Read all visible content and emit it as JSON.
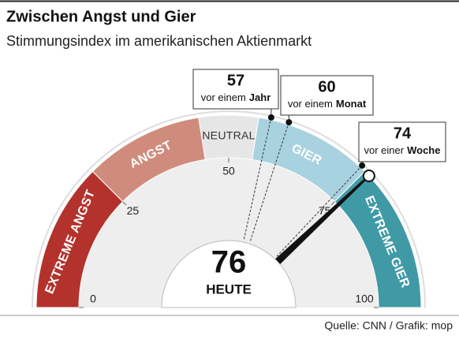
{
  "chart_data": {
    "type": "gauge",
    "title": "Zwischen Angst und Gier",
    "subtitle": "Stimmungsindex im amerikanischen Aktienmarkt",
    "source": "Quelle: CNN / Grafik: mop",
    "lim": [
      0,
      100
    ],
    "ticks": [
      0,
      25,
      50,
      75,
      100
    ],
    "value": 76,
    "value_label": "HEUTE",
    "zones": [
      {
        "name": "EXTREME ANGST",
        "from": 0,
        "to": 25,
        "color": "#b3322c"
      },
      {
        "name": "ANGST",
        "from": 25,
        "to": 45,
        "color": "#cf8c7d"
      },
      {
        "name": "NEUTRAL",
        "from": 45,
        "to": 55,
        "color": "#e6e6e6"
      },
      {
        "name": "GIER",
        "from": 55,
        "to": 75,
        "color": "#a8d2df"
      },
      {
        "name": "EXTREME GIER",
        "from": 75,
        "to": 100,
        "color": "#3f9aa6"
      }
    ],
    "markers": [
      {
        "value": 57,
        "prefix": "vor einem",
        "period": "Jahr"
      },
      {
        "value": 60,
        "prefix": "vor einem",
        "period": "Monat"
      },
      {
        "value": 74,
        "prefix": "vor einer",
        "period": "Woche"
      }
    ]
  }
}
